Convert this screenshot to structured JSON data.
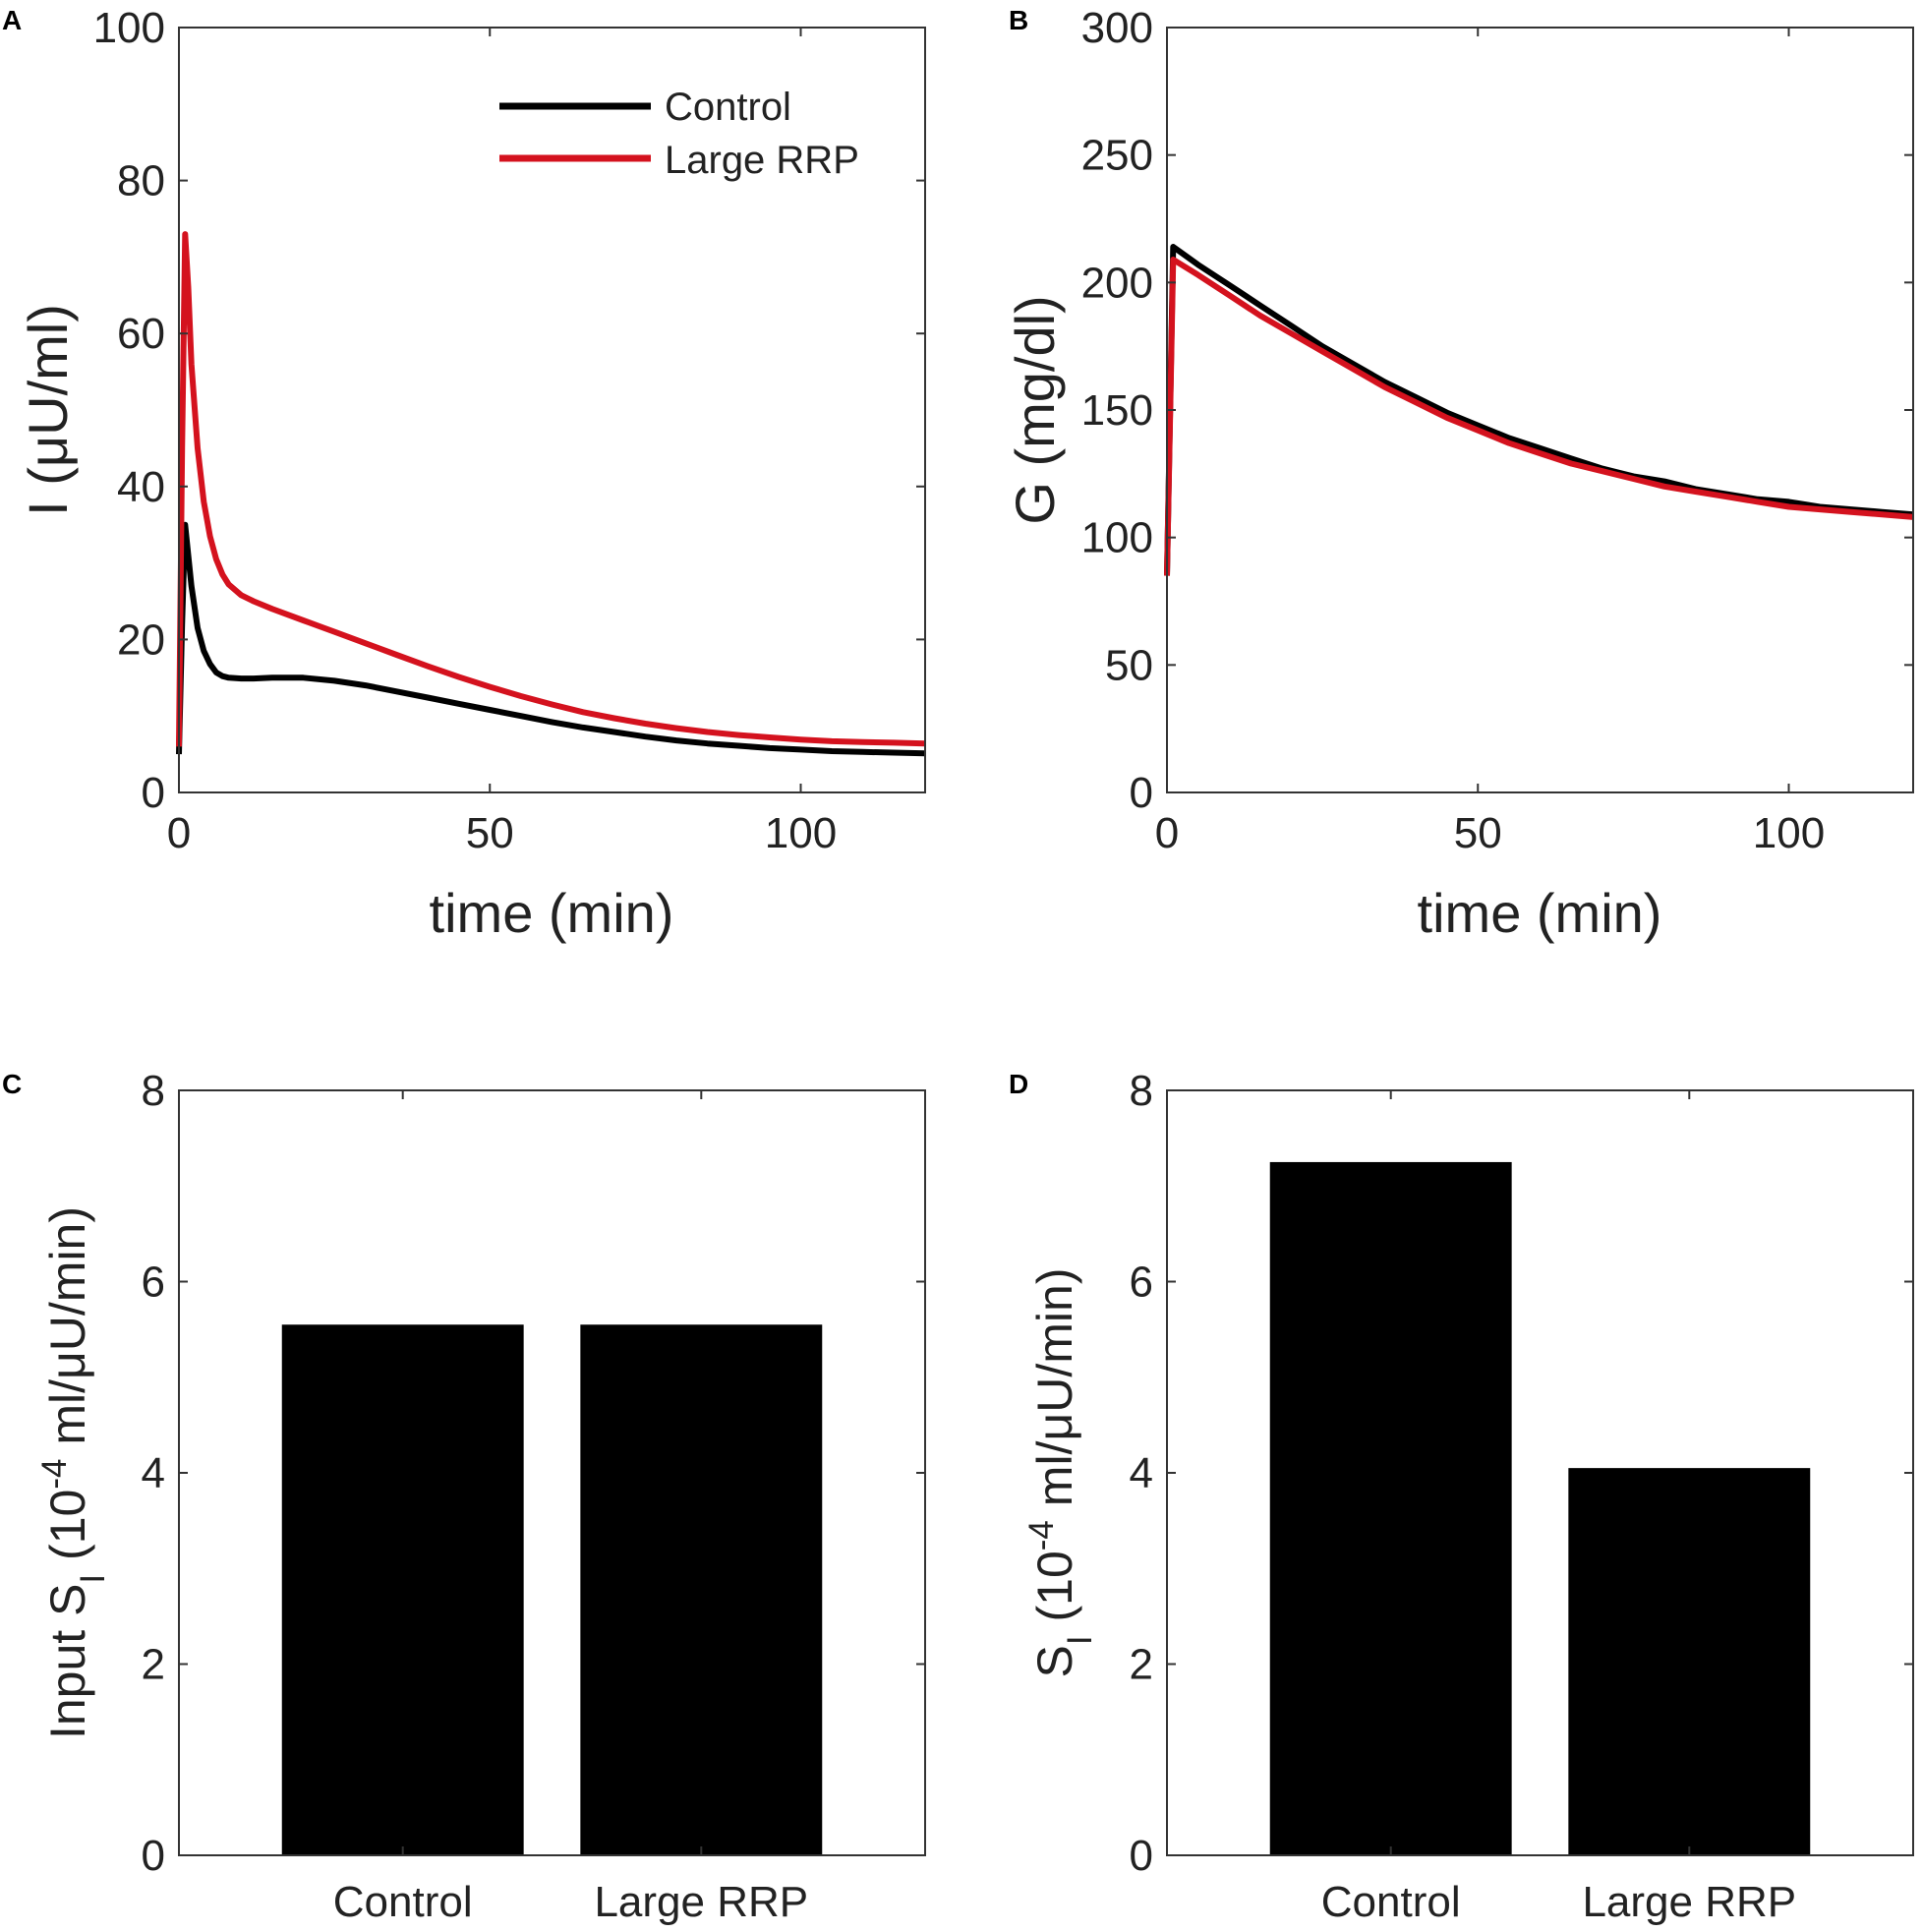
{
  "figure": {
    "panel_letters": [
      "A",
      "B",
      "C",
      "D"
    ]
  },
  "chart_data": [
    {
      "panel": "A",
      "type": "line",
      "title": "",
      "xlabel": "time (min)",
      "ylabel": "I (μU/ml)",
      "xlim": [
        0,
        120
      ],
      "ylim": [
        0,
        100
      ],
      "xticks": [
        0,
        50,
        100
      ],
      "yticks": [
        0,
        20,
        40,
        60,
        80,
        100
      ],
      "legend": {
        "placement": "top-right"
      },
      "series": [
        {
          "name": "Control",
          "color": "#000000",
          "x": [
            0,
            0.5,
            1,
            1.5,
            2,
            3,
            4,
            5,
            6,
            7,
            8,
            10,
            12,
            15,
            20,
            25,
            30,
            35,
            40,
            45,
            50,
            55,
            60,
            65,
            70,
            75,
            80,
            85,
            90,
            95,
            100,
            105,
            110,
            115,
            120
          ],
          "y": [
            5,
            22,
            35,
            31,
            27,
            21.5,
            18.5,
            16.8,
            15.7,
            15.2,
            15.0,
            14.9,
            14.9,
            15.0,
            15.0,
            14.6,
            14.0,
            13.2,
            12.4,
            11.6,
            10.8,
            10.0,
            9.2,
            8.5,
            7.9,
            7.3,
            6.8,
            6.4,
            6.1,
            5.8,
            5.6,
            5.4,
            5.3,
            5.2,
            5.1
          ]
        },
        {
          "name": "Large RRP",
          "color": "#d4121e",
          "x": [
            0,
            0.5,
            1,
            1.5,
            2,
            3,
            4,
            5,
            6,
            7,
            8,
            10,
            12,
            15,
            20,
            25,
            30,
            35,
            40,
            45,
            50,
            55,
            60,
            65,
            70,
            75,
            80,
            85,
            90,
            95,
            100,
            105,
            110,
            115,
            120
          ],
          "y": [
            6,
            45,
            73,
            66,
            56,
            45,
            38,
            33.5,
            30.5,
            28.5,
            27.2,
            25.8,
            25.0,
            24.0,
            22.5,
            21.0,
            19.5,
            18.0,
            16.5,
            15.1,
            13.8,
            12.6,
            11.5,
            10.5,
            9.7,
            9.0,
            8.4,
            7.9,
            7.5,
            7.2,
            6.9,
            6.7,
            6.6,
            6.5,
            6.4
          ]
        }
      ]
    },
    {
      "panel": "B",
      "type": "line",
      "title": "",
      "xlabel": "time (min)",
      "ylabel": "G (mg/dl)",
      "xlim": [
        0,
        120
      ],
      "ylim": [
        0,
        300
      ],
      "xticks": [
        0,
        50,
        100
      ],
      "yticks": [
        0,
        50,
        100,
        150,
        200,
        250,
        300
      ],
      "series": [
        {
          "name": "Control",
          "color": "#000000",
          "x": [
            0,
            1,
            5,
            10,
            15,
            20,
            25,
            30,
            35,
            40,
            45,
            50,
            55,
            60,
            65,
            70,
            75,
            80,
            85,
            90,
            95,
            100,
            105,
            110,
            115,
            120
          ],
          "y": [
            85,
            214,
            207,
            199,
            191,
            183,
            175,
            168,
            161,
            155,
            149,
            144,
            139,
            135,
            131,
            127,
            124,
            122,
            119,
            117,
            115,
            114,
            112,
            111,
            110,
            109
          ]
        },
        {
          "name": "Large RRP",
          "color": "#d4121e",
          "x": [
            0,
            1,
            5,
            10,
            15,
            20,
            25,
            30,
            35,
            40,
            45,
            50,
            55,
            60,
            65,
            70,
            75,
            80,
            85,
            90,
            95,
            100,
            105,
            110,
            115,
            120
          ],
          "y": [
            85,
            209,
            203,
            195,
            187,
            180,
            173,
            166,
            159,
            153,
            147,
            142,
            137,
            133,
            129,
            126,
            123,
            120,
            118,
            116,
            114,
            112,
            111,
            110,
            109,
            108
          ]
        }
      ]
    },
    {
      "panel": "C",
      "type": "bar",
      "title": "",
      "xlabel": "",
      "ylabel": "Input S_I (10^-4 ml/μU/min)",
      "ylim": [
        0,
        8
      ],
      "yticks": [
        0,
        2,
        4,
        6,
        8
      ],
      "categories": [
        "Control",
        "Large RRP"
      ],
      "values": [
        5.55,
        5.55
      ],
      "bar_color": "#000000"
    },
    {
      "panel": "D",
      "type": "bar",
      "title": "",
      "xlabel": "",
      "ylabel": "S_I (10^-4 ml/μU/min)",
      "ylim": [
        0,
        8
      ],
      "yticks": [
        0,
        2,
        4,
        6,
        8
      ],
      "categories": [
        "Control",
        "Large RRP"
      ],
      "values": [
        7.25,
        4.05
      ],
      "bar_color": "#000000"
    }
  ]
}
